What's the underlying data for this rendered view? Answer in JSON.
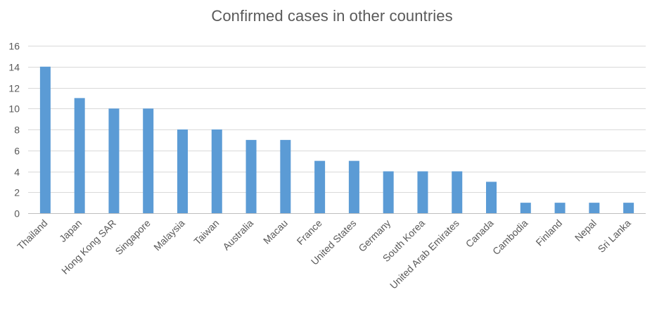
{
  "chart_data": {
    "type": "bar",
    "title": "Confirmed cases in other countries",
    "xlabel": "",
    "ylabel": "",
    "categories": [
      "Thailand",
      "Japan",
      "Hong Kong SAR",
      "Singapore",
      "Malaysia",
      "Taiwan",
      "Australia",
      "Macau",
      "France",
      "United States",
      "Germany",
      "South Korea",
      "United Arab Emirates",
      "Canada",
      "Cambodia",
      "Finland",
      "Nepal",
      "Sri Lanka"
    ],
    "values": [
      14,
      11,
      10,
      10,
      8,
      8,
      7,
      7,
      5,
      5,
      4,
      4,
      4,
      3,
      1,
      1,
      1,
      1
    ],
    "ylim": [
      0,
      16
    ],
    "yticks": [
      0,
      2,
      4,
      6,
      8,
      10,
      12,
      14,
      16
    ],
    "grid": true,
    "legend": "none",
    "colors": {
      "bar": "#5b9bd5",
      "grid": "#d9d9d9",
      "text": "#595959"
    }
  }
}
